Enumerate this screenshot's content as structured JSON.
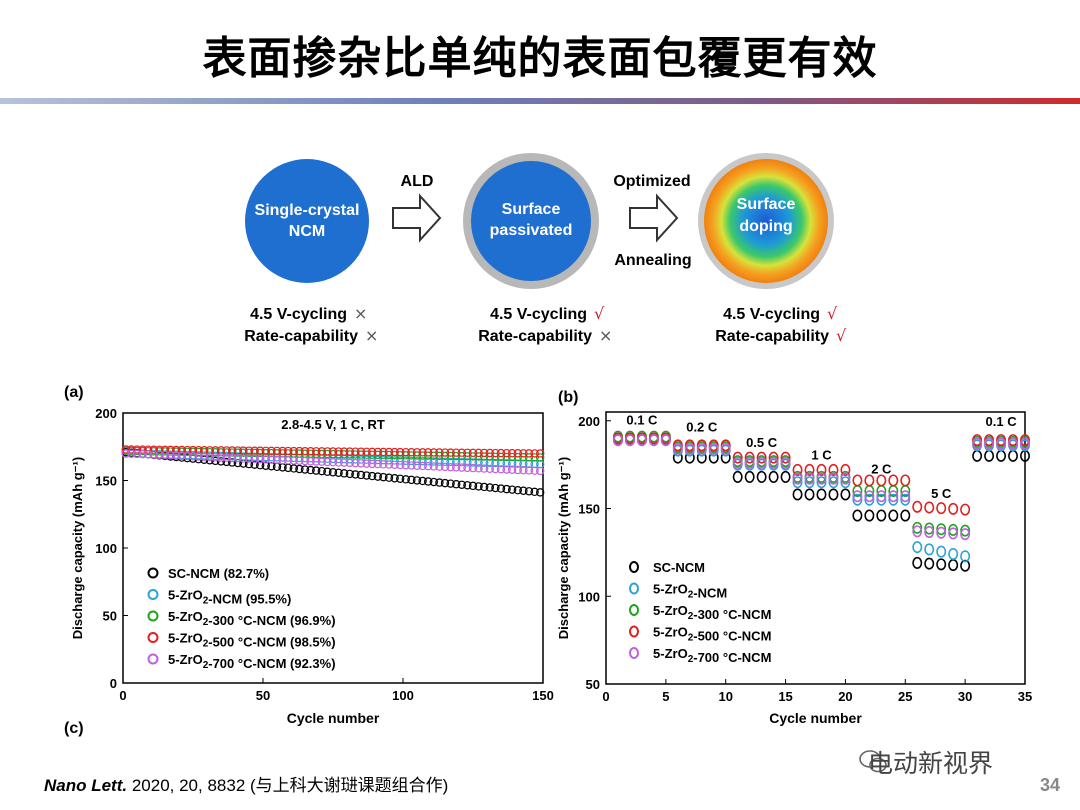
{
  "page": {
    "title": "表面掺杂比单纯的表面包覆更有效",
    "reference_journal": "Nano Lett.",
    "reference_rest": " 2020, 20, 8832 (与上科大谢琎课题组合作)",
    "page_number": "34",
    "watermark": "电动新视界"
  },
  "schematic": {
    "circles": [
      {
        "label_lines": [
          "Single-crystal",
          "NCM"
        ],
        "status_lines": [
          "4.5 V-cycling",
          "Rate-capability"
        ],
        "marks": [
          "×",
          "×"
        ]
      },
      {
        "label_lines": [
          "Surface",
          "passivated"
        ],
        "status_lines": [
          "4.5 V-cycling",
          "Rate-capability"
        ],
        "marks": [
          "√",
          "×"
        ]
      },
      {
        "label_lines": [
          "Surface",
          "doping"
        ],
        "status_lines": [
          "4.5 V-cycling",
          "Rate-capability"
        ],
        "marks": [
          "√",
          "√"
        ]
      }
    ],
    "arrow1_top": "ALD",
    "arrow2_top": "Optimized",
    "arrow2_bottom": "Annealing"
  },
  "colors": {
    "blue": "#1f6fd0",
    "check": "#d0202a",
    "cross": "#555555"
  },
  "chart_data": [
    {
      "panel": "(a)",
      "type": "scatter",
      "annotation": "2.8-4.5 V, 1 C, RT",
      "xlabel": "Cycle number",
      "ylabel": "Discharge capacity (mAh g⁻¹)",
      "xlim": [
        0,
        150
      ],
      "ylim": [
        0,
        200
      ],
      "xticks": [
        0,
        50,
        100,
        150
      ],
      "yticks": [
        0,
        50,
        100,
        150,
        200
      ],
      "series": [
        {
          "name": "SC-NCM (82.7%)",
          "color": "#000000",
          "start": 171,
          "end": 141
        },
        {
          "name": "5-ZrO2-NCM (95.5%)",
          "color": "#2aa3d8",
          "start": 170,
          "end": 162
        },
        {
          "name": "5-ZrO2-300 °C-NCM (96.9%)",
          "color": "#1fa31f",
          "start": 172,
          "end": 167
        },
        {
          "name": "5-ZrO2-500 °C-NCM (98.5%)",
          "color": "#e02020",
          "start": 173,
          "end": 170
        },
        {
          "name": "5-ZrO2-700 °C-NCM (92.3%)",
          "color": "#c060e0",
          "start": 170,
          "end": 157
        }
      ]
    },
    {
      "panel": "(b)",
      "type": "scatter",
      "xlabel": "Cycle number",
      "ylabel": "Discharge capacity (mAh g⁻¹)",
      "xlim": [
        0,
        35
      ],
      "ylim": [
        50,
        205
      ],
      "xticks": [
        0,
        5,
        10,
        15,
        20,
        25,
        30,
        35
      ],
      "yticks": [
        50,
        100,
        150,
        200
      ],
      "rate_labels": [
        {
          "text": "0.1 C",
          "x": 3,
          "y": 198
        },
        {
          "text": "0.2 C",
          "x": 8,
          "y": 194
        },
        {
          "text": "0.5 C",
          "x": 13,
          "y": 185
        },
        {
          "text": "1 C",
          "x": 18,
          "y": 178
        },
        {
          "text": "2 C",
          "x": 23,
          "y": 170
        },
        {
          "text": "5 C",
          "x": 28,
          "y": 156
        },
        {
          "text": "0.1 C",
          "x": 33,
          "y": 197
        }
      ],
      "steps": [
        {
          "from": 1,
          "to": 5
        },
        {
          "from": 6,
          "to": 10
        },
        {
          "from": 11,
          "to": 15
        },
        {
          "from": 16,
          "to": 20
        },
        {
          "from": 21,
          "to": 25
        },
        {
          "from": 26,
          "to": 30
        },
        {
          "from": 31,
          "to": 35
        }
      ],
      "series": [
        {
          "name": "SC-NCM",
          "color": "#000000",
          "values": [
            189,
            179,
            168,
            158,
            146,
            119,
            180
          ]
        },
        {
          "name": "5-ZrO2-NCM",
          "color": "#2aa3d8",
          "values": [
            190,
            183,
            175,
            165,
            155,
            128,
            186
          ]
        },
        {
          "name": "5-ZrO2-300 °C-NCM",
          "color": "#1fa31f",
          "values": [
            191,
            185,
            177,
            168,
            160,
            139,
            188
          ]
        },
        {
          "name": "5-ZrO2-500 °C-NCM",
          "color": "#e02020",
          "values": [
            190,
            186,
            179,
            172,
            166,
            151,
            189
          ]
        },
        {
          "name": "5-ZrO2-700 °C-NCM",
          "color": "#c060e0",
          "values": [
            189,
            184,
            176,
            167,
            157,
            137,
            187
          ]
        }
      ]
    }
  ],
  "panel_c_label": "(c)"
}
